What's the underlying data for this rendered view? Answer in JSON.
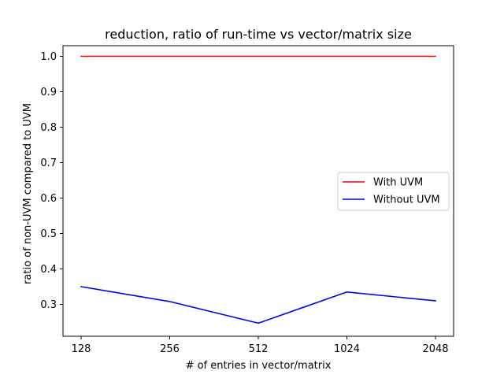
{
  "chart_data": {
    "type": "line",
    "title": "reduction, ratio of run-time vs vector/matrix size",
    "xlabel": "# of entries in vector/matrix",
    "ylabel": "ratio of non-UVM compared to UVM",
    "categories": [
      "128",
      "256",
      "512",
      "1024",
      "2048"
    ],
    "ylim": [
      0.21,
      1.03
    ],
    "yticks": [
      "0.3",
      "0.4",
      "0.5",
      "0.6",
      "0.7",
      "0.8",
      "0.9",
      "1.0"
    ],
    "grid": false,
    "legend_position": "center-right",
    "series": [
      {
        "name": "With UVM",
        "color": "#ff0000",
        "values": [
          1.0,
          1.0,
          1.0,
          1.0,
          1.0
        ]
      },
      {
        "name": "Without UVM",
        "color": "#0000ff",
        "values": [
          0.35,
          0.308,
          0.247,
          0.335,
          0.31
        ]
      }
    ]
  }
}
